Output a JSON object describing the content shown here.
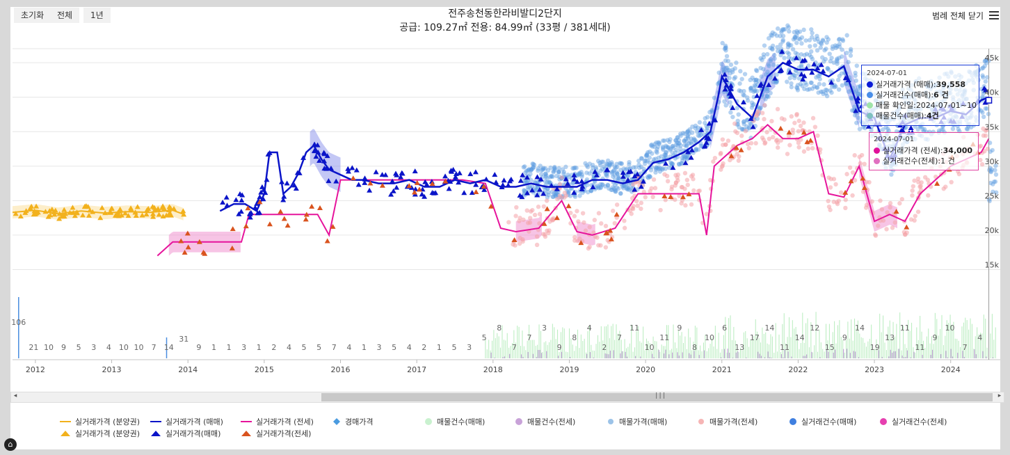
{
  "toolbar": {
    "reset": "초기화",
    "all": "전체",
    "one_year": "1년",
    "legend_close": "범례 전체 닫기"
  },
  "tooltip_sale": {
    "date": "2024-07-01",
    "r1_label": "실거래가격 (매매): ",
    "r1_value": "39,558",
    "r2_label": "실거래건수(매매): ",
    "r2_value": "6 건",
    "r3_label": "매물 확인일:",
    "r3_value": "2024-07-01~10",
    "r4_label": "매물건수(매매): ",
    "r4_value": "4건"
  },
  "tooltip_jeonse": {
    "date": "2024-07-01",
    "r1_label": "실거래가격 (전세): ",
    "r1_value": "34,000",
    "r2_label": "실거래건수(전세): ",
    "r2_value": "1 건"
  },
  "legend": [
    "실거래가격 (분양권)",
    "실거래가격 (분양권)",
    "실거래가격 (매매)",
    "실거래가격(매매)",
    "실거래가격 (전세)",
    "실거래가격(전세)",
    "경매가격",
    "매물건수(매매)",
    "매물건수(전세)",
    "매물가격(매매)",
    "매물가격(전세)",
    "실거래건수(매매)",
    "실거래건수(전세)"
  ],
  "colors": {
    "presale": "#f2b11c",
    "sale": "#0a14c8",
    "jeonse": "#e6139b",
    "jeonse_trade": "#d9531e",
    "sale_listing": "#5a9be0",
    "jeonse_listing": "#f4a3a8",
    "sale_count": "#9fe3a8",
    "jeonse_count": "#b48ad0"
  },
  "chart_data": {
    "type": "line",
    "title": "전주송천동한라비발디2단지",
    "subtitle": "공급: 109.27㎡ 전용: 84.99㎡ (33평 / 381세대)",
    "x_ticks": [
      "2012",
      "2013",
      "2014",
      "2015",
      "2016",
      "2017",
      "2018",
      "2019",
      "2020",
      "2021",
      "2022",
      "2023",
      "2024"
    ],
    "y_ticks": [
      "15k",
      "20k",
      "25k",
      "30k",
      "35k",
      "40k",
      "45k"
    ],
    "ylim": [
      10000,
      50000
    ],
    "xlim": [
      2011.7,
      2024.65
    ],
    "series": [
      {
        "name": "실거래가격 (분양권)",
        "x": [
          2011.7,
          2012.0,
          2012.3,
          2012.6,
          2012.9,
          2013.2,
          2013.5,
          2013.8,
          2013.95
        ],
        "y": [
          23300,
          23600,
          23100,
          23500,
          23200,
          23400,
          23300,
          23600,
          23000
        ]
      },
      {
        "name": "실거래가격 (매매)",
        "x": [
          2014.42,
          2014.6,
          2014.75,
          2014.9,
          2015.0,
          2015.07,
          2015.17,
          2015.25,
          2015.35,
          2015.45,
          2015.55,
          2015.65,
          2015.75,
          2015.85,
          2015.95,
          2016.05,
          2016.15,
          2016.3,
          2016.5,
          2016.7,
          2016.9,
          2017.1,
          2017.3,
          2017.5,
          2017.7,
          2017.9,
          2018.1,
          2018.3,
          2018.5,
          2018.7,
          2018.9,
          2019.1,
          2019.3,
          2019.5,
          2019.7,
          2019.9,
          2020.1,
          2020.3,
          2020.5,
          2020.7,
          2020.85,
          2020.95,
          2021.0,
          2021.2,
          2021.4,
          2021.6,
          2021.8,
          2022.0,
          2022.2,
          2022.4,
          2022.6,
          2022.8,
          2023.0,
          2023.1,
          2023.2,
          2023.4,
          2023.6,
          2023.8,
          2024.0,
          2024.2,
          2024.4,
          2024.5
        ],
        "y": [
          23500,
          24500,
          24500,
          23500,
          26000,
          32000,
          32000,
          26000,
          27000,
          29000,
          32000,
          33000,
          31000,
          29500,
          29000,
          28500,
          28000,
          28000,
          27500,
          27500,
          28000,
          27000,
          27000,
          28000,
          27500,
          28000,
          27000,
          27000,
          27500,
          27000,
          27000,
          27000,
          28000,
          28000,
          27500,
          28000,
          30500,
          31000,
          32000,
          33500,
          35000,
          40000,
          43000,
          39000,
          37000,
          43000,
          45000,
          44000,
          44000,
          43000,
          44500,
          38000,
          37000,
          34000,
          31000,
          36000,
          37000,
          37000,
          38000,
          37500,
          39558,
          40000
        ]
      },
      {
        "name": "실거래가격 (전세)",
        "x": [
          2013.6,
          2013.8,
          2014.0,
          2014.3,
          2014.7,
          2014.8,
          2015.3,
          2015.7,
          2015.85,
          2016.0,
          2016.3,
          2016.6,
          2016.9,
          2017.2,
          2017.6,
          2017.9,
          2018.1,
          2018.3,
          2018.6,
          2018.9,
          2019.1,
          2019.3,
          2019.6,
          2019.9,
          2020.1,
          2020.4,
          2020.7,
          2020.8,
          2020.9,
          2021.0,
          2021.2,
          2021.4,
          2021.6,
          2021.8,
          2022.0,
          2022.2,
          2022.4,
          2022.6,
          2022.8,
          2023.0,
          2023.2,
          2023.4,
          2023.6,
          2023.8,
          2024.0,
          2024.2,
          2024.4,
          2024.5
        ],
        "y": [
          17000,
          19000,
          19000,
          19000,
          19000,
          23000,
          23000,
          23000,
          20000,
          28000,
          28000,
          28000,
          28000,
          28000,
          28000,
          27500,
          21000,
          20500,
          21000,
          25000,
          20500,
          20000,
          21000,
          26000,
          26000,
          26000,
          26000,
          20000,
          30000,
          31000,
          33000,
          34000,
          36000,
          34000,
          34000,
          35000,
          26000,
          25500,
          30000,
          22000,
          23000,
          22000,
          26000,
          28000,
          30000,
          31000,
          32000,
          34000
        ]
      }
    ],
    "volume_labels": [
      "106",
      "21",
      "10",
      "9",
      "5",
      "3",
      "4",
      "10",
      "10",
      "7",
      "14",
      "31",
      "9",
      "1",
      "1",
      "3",
      "1",
      "2",
      "4",
      "5",
      "5",
      "7",
      "4",
      "1",
      "3",
      "5",
      "4",
      "2",
      "1",
      "5",
      "3",
      "5",
      "8",
      "7",
      "7",
      "3",
      "9",
      "8",
      "4",
      "2",
      "7",
      "11",
      "10",
      "11",
      "9",
      "8",
      "10",
      "6",
      "13",
      "17",
      "14",
      "11",
      "14",
      "12",
      "15",
      "9",
      "14",
      "19",
      "13",
      "11",
      "11",
      "9",
      "10",
      "7",
      "4"
    ]
  }
}
